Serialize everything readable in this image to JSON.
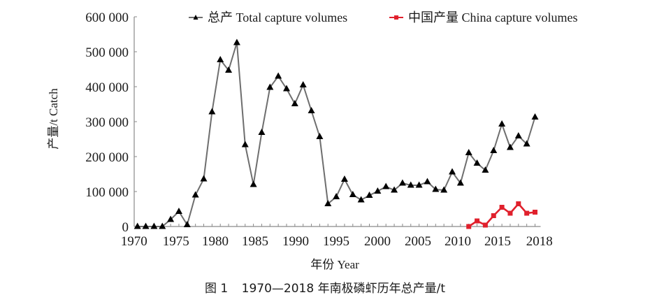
{
  "chart_data": {
    "type": "line",
    "title": "",
    "caption": {
      "figure_no": "图 1",
      "text": "1970—2018 年南极磷虾历年总产量/t"
    },
    "xlabel": "年份 Year",
    "ylabel": "产量/t Catch",
    "xlim": [
      1970,
      2018
    ],
    "ylim": [
      0,
      600000
    ],
    "yticks": [
      0,
      100000,
      200000,
      300000,
      400000,
      500000,
      600000
    ],
    "ytick_labels": [
      "0",
      "100 000",
      "200 000",
      "300 000",
      "400 000",
      "500 000",
      "600 000"
    ],
    "xtick_labels": [
      "1970",
      "1975",
      "1980",
      "1985",
      "1990",
      "1995",
      "2000",
      "2005",
      "2010",
      "2015",
      "2018"
    ],
    "grid": false,
    "legend_position": "top",
    "x": [
      1970,
      1971,
      1972,
      1973,
      1974,
      1975,
      1976,
      1977,
      1978,
      1979,
      1980,
      1981,
      1982,
      1983,
      1984,
      1985,
      1986,
      1987,
      1988,
      1989,
      1990,
      1991,
      1992,
      1993,
      1994,
      1995,
      1996,
      1997,
      1998,
      1999,
      2000,
      2001,
      2002,
      2003,
      2004,
      2005,
      2006,
      2007,
      2008,
      2009,
      2010,
      2011,
      2012,
      2013,
      2014,
      2015,
      2016,
      2017,
      2018
    ],
    "series": [
      {
        "name": "总产 Total capture volumes",
        "color": "#6e6e6e",
        "marker": "triangle",
        "marker_color": "#000000",
        "x_start": 1970,
        "values": [
          0,
          0,
          0,
          0,
          20000,
          43000,
          5000,
          90000,
          136000,
          328000,
          477000,
          447000,
          526000,
          234000,
          120000,
          269000,
          398000,
          430000,
          394000,
          351000,
          405000,
          331000,
          257000,
          65000,
          85000,
          135000,
          91000,
          76000,
          89000,
          101000,
          114000,
          104000,
          124000,
          118000,
          118000,
          128000,
          106000,
          104000,
          156000,
          124000,
          211000,
          181000,
          161000,
          217000,
          293000,
          226000,
          259000,
          236000,
          313000
        ]
      },
      {
        "name": "中国产量 China capture volumes",
        "color": "#e0202c",
        "marker": "square",
        "marker_color": "#e0202c",
        "x_start": 2010,
        "values": [
          0,
          16000,
          4000,
          31000,
          55000,
          38000,
          65000,
          38000,
          41000
        ]
      }
    ]
  }
}
